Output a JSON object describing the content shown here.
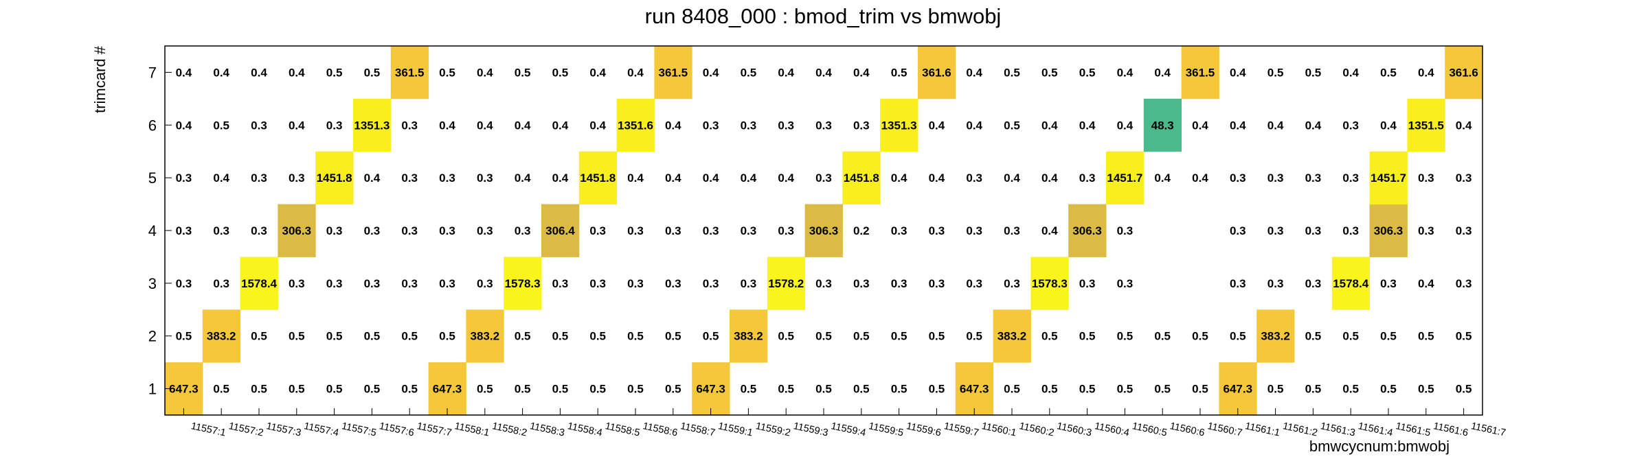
{
  "chart_data": {
    "type": "heatmap",
    "title": "run 8408_000 : bmod_trim vs bmwobj",
    "xlabel": "bmwcycnum:bmwobj",
    "ylabel": "trimcard #",
    "x_categories": [
      "11557:1",
      "11557:2",
      "11557:3",
      "11557:4",
      "11557:5",
      "11557:6",
      "11557:7",
      "11558:1",
      "11558:2",
      "11558:3",
      "11558:4",
      "11558:5",
      "11558:6",
      "11558:7",
      "11559:1",
      "11559:2",
      "11559:3",
      "11559:4",
      "11559:5",
      "11559:6",
      "11559:7",
      "11560:1",
      "11560:2",
      "11560:3",
      "11560:4",
      "11560:5",
      "11560:6",
      "11560:7",
      "11561:1",
      "11561:2",
      "11561:3",
      "11561:4",
      "11561:5",
      "11561:6",
      "11561:7"
    ],
    "y_categories": [
      "1",
      "2",
      "3",
      "4",
      "5",
      "6",
      "7"
    ],
    "rows": [
      {
        "y": "1",
        "values": [
          647.3,
          0.5,
          0.5,
          0.5,
          0.5,
          0.5,
          0.5,
          647.3,
          0.5,
          0.5,
          0.5,
          0.5,
          0.5,
          0.5,
          647.3,
          0.5,
          0.5,
          0.5,
          0.5,
          0.5,
          0.5,
          647.3,
          0.5,
          0.5,
          0.5,
          0.5,
          0.5,
          0.5,
          647.3,
          0.5,
          0.5,
          0.5,
          0.5,
          0.5,
          0.5
        ]
      },
      {
        "y": "2",
        "values": [
          0.5,
          383.2,
          0.5,
          0.5,
          0.5,
          0.5,
          0.5,
          0.5,
          383.2,
          0.5,
          0.5,
          0.5,
          0.5,
          0.5,
          0.5,
          383.2,
          0.5,
          0.5,
          0.5,
          0.5,
          0.5,
          0.5,
          383.2,
          0.5,
          0.5,
          0.5,
          0.5,
          0.5,
          0.5,
          383.2,
          0.5,
          0.5,
          0.5,
          0.5,
          0.5
        ]
      },
      {
        "y": "3",
        "values": [
          0.3,
          0.3,
          1578.4,
          0.3,
          0.3,
          0.3,
          0.3,
          0.3,
          0.3,
          1578.3,
          0.3,
          0.3,
          0.3,
          0.3,
          0.3,
          0.3,
          1578.2,
          0.3,
          0.3,
          0.3,
          0.3,
          0.3,
          0.3,
          1578.3,
          0.3,
          0.3,
          null,
          null,
          0.3,
          0.3,
          0.3,
          1578.4,
          0.3,
          0.4,
          0.3
        ]
      },
      {
        "y": "4",
        "values": [
          0.3,
          0.3,
          0.3,
          306.3,
          0.3,
          0.3,
          0.3,
          0.3,
          0.3,
          0.3,
          306.4,
          0.3,
          0.3,
          0.3,
          0.3,
          0.3,
          0.3,
          306.3,
          0.2,
          0.3,
          0.3,
          0.3,
          0.3,
          0.4,
          306.3,
          0.3,
          null,
          null,
          0.3,
          0.3,
          0.3,
          0.3,
          306.3,
          0.3,
          0.3
        ]
      },
      {
        "y": "5",
        "values": [
          0.3,
          0.4,
          0.3,
          0.3,
          1451.8,
          0.4,
          0.3,
          0.3,
          0.3,
          0.4,
          0.4,
          1451.8,
          0.4,
          0.4,
          0.4,
          0.4,
          0.4,
          0.3,
          1451.8,
          0.4,
          0.4,
          0.3,
          0.4,
          0.4,
          0.3,
          1451.7,
          0.4,
          0.4,
          0.3,
          0.3,
          0.3,
          0.3,
          1451.7,
          0.3,
          0.3
        ]
      },
      {
        "y": "6",
        "values": [
          0.4,
          0.5,
          0.3,
          0.4,
          0.3,
          1351.3,
          0.3,
          0.4,
          0.4,
          0.4,
          0.4,
          0.4,
          1351.6,
          0.4,
          0.3,
          0.3,
          0.3,
          0.3,
          0.3,
          1351.3,
          0.4,
          0.4,
          0.5,
          0.4,
          0.4,
          0.4,
          48.3,
          0.4,
          0.4,
          0.4,
          0.4,
          0.3,
          0.4,
          1351.5,
          0.4
        ]
      },
      {
        "y": "7",
        "values": [
          0.4,
          0.4,
          0.4,
          0.4,
          0.5,
          0.5,
          361.5,
          0.5,
          0.4,
          0.5,
          0.5,
          0.4,
          0.4,
          361.5,
          0.4,
          0.5,
          0.4,
          0.4,
          0.4,
          0.5,
          361.6,
          0.4,
          0.5,
          0.5,
          0.5,
          0.4,
          0.4,
          361.5,
          0.4,
          0.5,
          0.5,
          0.4,
          0.5,
          0.4,
          361.6
        ]
      }
    ],
    "grid": false,
    "legend": "none",
    "colors": {
      "frame": "#000000",
      "text": "#000000",
      "highlight": {
        "48.3": "#4cb98a",
        "306": "#dcbb45",
        "361": "#f5c83c",
        "383": "#f5c83c",
        "647": "#f5c83c",
        "1351": "#f9ef1e",
        "1451": "#f9ef1e",
        "1578": "#f9f41c"
      }
    }
  }
}
